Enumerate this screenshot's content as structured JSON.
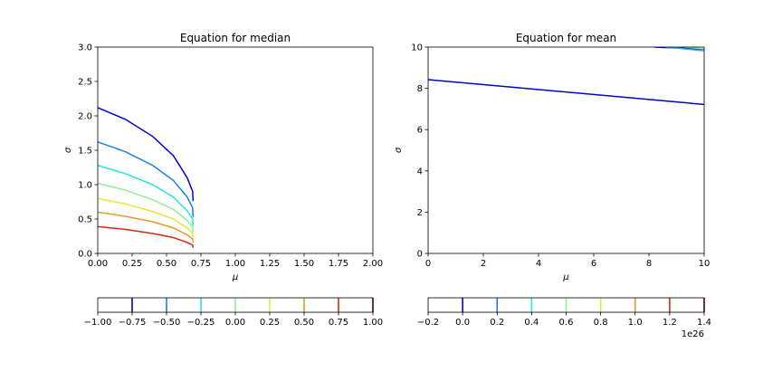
{
  "chart_data": [
    {
      "type": "line",
      "title": "Equation for median",
      "xlabel": "μ",
      "ylabel": "σ",
      "xlim": [
        0,
        2
      ],
      "ylim": [
        0,
        3
      ],
      "xticks": [
        "0.00",
        "0.25",
        "0.50",
        "0.75",
        "1.00",
        "1.25",
        "1.50",
        "1.75",
        "2.00"
      ],
      "yticks": [
        "0.0",
        "0.5",
        "1.0",
        "1.5",
        "2.0",
        "2.5",
        "3.0"
      ],
      "grid": false,
      "series": [
        {
          "color": "#0000cd",
          "points": [
            [
              0,
              2.12
            ],
            [
              0.2,
              1.95
            ],
            [
              0.4,
              1.7
            ],
            [
              0.55,
              1.42
            ],
            [
              0.65,
              1.1
            ],
            [
              0.69,
              0.9
            ],
            [
              0.693,
              0.76
            ]
          ]
        },
        {
          "color": "#1e7fe0",
          "points": [
            [
              0,
              1.62
            ],
            [
              0.2,
              1.48
            ],
            [
              0.4,
              1.28
            ],
            [
              0.55,
              1.06
            ],
            [
              0.65,
              0.82
            ],
            [
              0.69,
              0.66
            ],
            [
              0.693,
              0.53
            ]
          ]
        },
        {
          "color": "#22e5e5",
          "points": [
            [
              0,
              1.28
            ],
            [
              0.2,
              1.16
            ],
            [
              0.4,
              1.0
            ],
            [
              0.55,
              0.82
            ],
            [
              0.65,
              0.62
            ],
            [
              0.69,
              0.5
            ],
            [
              0.693,
              0.4
            ]
          ]
        },
        {
          "color": "#90ee90",
          "points": [
            [
              0,
              1.02
            ],
            [
              0.2,
              0.92
            ],
            [
              0.4,
              0.78
            ],
            [
              0.55,
              0.64
            ],
            [
              0.65,
              0.48
            ],
            [
              0.69,
              0.38
            ],
            [
              0.693,
              0.31
            ]
          ]
        },
        {
          "color": "#e5e542",
          "points": [
            [
              0,
              0.8
            ],
            [
              0.2,
              0.72
            ],
            [
              0.4,
              0.61
            ],
            [
              0.55,
              0.5
            ],
            [
              0.65,
              0.37
            ],
            [
              0.69,
              0.29
            ],
            [
              0.693,
              0.23
            ]
          ]
        },
        {
          "color": "#e89b22",
          "points": [
            [
              0,
              0.6
            ],
            [
              0.2,
              0.54
            ],
            [
              0.4,
              0.46
            ],
            [
              0.55,
              0.37
            ],
            [
              0.65,
              0.27
            ],
            [
              0.69,
              0.21
            ],
            [
              0.693,
              0.16
            ]
          ]
        },
        {
          "color": "#d62a10",
          "points": [
            [
              0,
              0.39
            ],
            [
              0.2,
              0.35
            ],
            [
              0.4,
              0.29
            ],
            [
              0.55,
              0.23
            ],
            [
              0.65,
              0.16
            ],
            [
              0.69,
              0.12
            ],
            [
              0.693,
              0.08
            ]
          ]
        }
      ],
      "colorbar": {
        "range": [
          -1,
          1
        ],
        "ticks": [
          "−1.00",
          "−0.75",
          "−0.50",
          "−0.25",
          "0.00",
          "0.25",
          "0.50",
          "0.75",
          "1.00"
        ],
        "lines": [
          {
            "value": -0.75,
            "color": "#0000cd"
          },
          {
            "value": -0.5,
            "color": "#1e7fe0"
          },
          {
            "value": -0.25,
            "color": "#22e5e5"
          },
          {
            "value": 0.0,
            "color": "#90ee90"
          },
          {
            "value": 0.25,
            "color": "#e5e542"
          },
          {
            "value": 0.5,
            "color": "#e89b22"
          },
          {
            "value": 0.75,
            "color": "#d62a10"
          },
          {
            "value": 1.0,
            "color": "#8b0000"
          }
        ]
      }
    },
    {
      "type": "line",
      "title": "Equation for mean",
      "xlabel": "μ",
      "ylabel": "σ",
      "xlim": [
        0,
        10
      ],
      "ylim": [
        0,
        10
      ],
      "xticks": [
        "0",
        "2",
        "4",
        "6",
        "8",
        "10"
      ],
      "yticks": [
        "0",
        "2",
        "4",
        "6",
        "8",
        "10"
      ],
      "grid": false,
      "series": [
        {
          "color": "#0000cd",
          "points": [
            [
              0,
              8.42
            ],
            [
              10,
              7.22
            ]
          ]
        },
        {
          "color": "#0000cd",
          "points": [
            [
              8.2,
              10.0
            ],
            [
              10,
              9.9
            ]
          ]
        },
        {
          "color": "#22b0e5",
          "points": [
            [
              8.6,
              10.0
            ],
            [
              10,
              9.82
            ]
          ]
        },
        {
          "color": "#90ee90",
          "points": [
            [
              9.3,
              10.0
            ],
            [
              10,
              9.92
            ]
          ]
        }
      ],
      "colorbar": {
        "range": [
          -0.2,
          1.4
        ],
        "ticks": [
          "−0.2",
          "0.0",
          "0.2",
          "0.4",
          "0.6",
          "0.8",
          "1.0",
          "1.2",
          "1.4"
        ],
        "offset": "1e26",
        "lines": [
          {
            "value": 0.0,
            "color": "#0000cd"
          },
          {
            "value": 0.2,
            "color": "#1e7fe0"
          },
          {
            "value": 0.4,
            "color": "#22e5e5"
          },
          {
            "value": 0.6,
            "color": "#90ee90"
          },
          {
            "value": 0.8,
            "color": "#e5e542"
          },
          {
            "value": 1.0,
            "color": "#e89b22"
          },
          {
            "value": 1.2,
            "color": "#d62a10"
          },
          {
            "value": 1.4,
            "color": "#8b0000"
          }
        ]
      }
    }
  ]
}
